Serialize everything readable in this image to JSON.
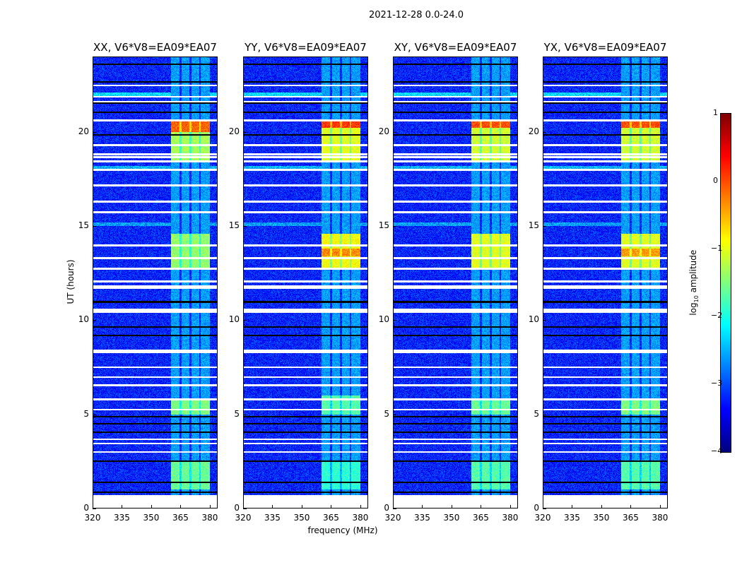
{
  "suptitle": "2021-12-28 0.0-24.0",
  "chart_data": {
    "type": "heatmap",
    "xlabel": "frequency (MHz)",
    "ylabel": "UT (hours)",
    "xlim": [
      320,
      384
    ],
    "ylim": [
      0,
      24
    ],
    "data_ylim": [
      0.7,
      24
    ],
    "xticks": [
      320,
      335,
      350,
      365,
      380
    ],
    "yticks": [
      0,
      5,
      10,
      15,
      20
    ],
    "colorbar": {
      "label_main": "log",
      "label_sub": "10",
      "label_tail": " amplitude",
      "range": [
        -4,
        1
      ],
      "ticks": [
        1,
        0,
        -1,
        -2,
        -3,
        -4
      ],
      "cmap": "jet"
    },
    "background_level": -3.2,
    "rfi_band_mhz": [
      360,
      380
    ],
    "rfi_band_level": -2.6,
    "rfi_subband_gaps_mhz": [
      365,
      370,
      375
    ],
    "flagged_white_hours": [
      22.47,
      21.87,
      21.61,
      20.6,
      19.29,
      18.8,
      18.65,
      18.43,
      17.98,
      17.15,
      16.29,
      15.73,
      13.97,
      13.3,
      12.73,
      12.06,
      11.8,
      11.7,
      10.56,
      10.45,
      8.39,
      8.3,
      7.49,
      6.97,
      6.55,
      5.8,
      5.24,
      3.67,
      3.45,
      3.0
    ],
    "flagged_black_hours": [
      23.6,
      22.66,
      21.54,
      21.05,
      19.85,
      10.97,
      9.63,
      9.18,
      4.87,
      4.49,
      4.04,
      2.51,
      1.39,
      0.86
    ],
    "bright_rows": [
      {
        "hours": [
          21.9,
          22.1
        ],
        "level": -2.3
      },
      {
        "hours": [
          18.0,
          18.2
        ],
        "level": -2.5
      },
      {
        "hours": [
          15.0,
          15.2
        ],
        "level": -2.6
      }
    ],
    "panels": [
      {
        "title": "XX, V6*V8=EA09*EA07",
        "regions": [
          {
            "t": [
              20.0,
              20.6
            ],
            "level": -0.1
          },
          {
            "t": [
              18.5,
              20.0
            ],
            "level": -1.3
          },
          {
            "t": [
              12.8,
              14.6
            ],
            "level": -1.4
          },
          {
            "t": [
              5.0,
              5.8
            ],
            "level": -1.5
          },
          {
            "t": [
              1.0,
              2.5
            ],
            "level": -1.6
          }
        ]
      },
      {
        "title": "YY, V6*V8=EA09*EA07",
        "regions": [
          {
            "t": [
              20.2,
              20.6
            ],
            "level": 0.1
          },
          {
            "t": [
              18.5,
              20.2
            ],
            "level": -1.0
          },
          {
            "t": [
              13.4,
              13.8
            ],
            "level": -0.3
          },
          {
            "t": [
              12.8,
              14.6
            ],
            "level": -0.9
          },
          {
            "t": [
              5.0,
              6.0
            ],
            "level": -1.7
          },
          {
            "t": [
              1.0,
              2.5
            ],
            "level": -1.9
          }
        ]
      },
      {
        "title": "XY, V6*V8=EA09*EA07",
        "regions": [
          {
            "t": [
              20.2,
              20.6
            ],
            "level": 0.0
          },
          {
            "t": [
              18.5,
              20.2
            ],
            "level": -1.1
          },
          {
            "t": [
              12.8,
              14.6
            ],
            "level": -1.0
          },
          {
            "t": [
              5.0,
              5.8
            ],
            "level": -1.6
          },
          {
            "t": [
              1.0,
              2.5
            ],
            "level": -1.7
          }
        ]
      },
      {
        "title": "YX, V6*V8=EA09*EA07",
        "regions": [
          {
            "t": [
              20.2,
              20.6
            ],
            "level": 0.0
          },
          {
            "t": [
              18.5,
              20.2
            ],
            "level": -1.1
          },
          {
            "t": [
              13.4,
              13.8
            ],
            "level": -0.4
          },
          {
            "t": [
              12.8,
              14.6
            ],
            "level": -1.0
          },
          {
            "t": [
              5.0,
              5.8
            ],
            "level": -1.5
          },
          {
            "t": [
              1.0,
              2.5
            ],
            "level": -1.7
          }
        ]
      }
    ]
  }
}
